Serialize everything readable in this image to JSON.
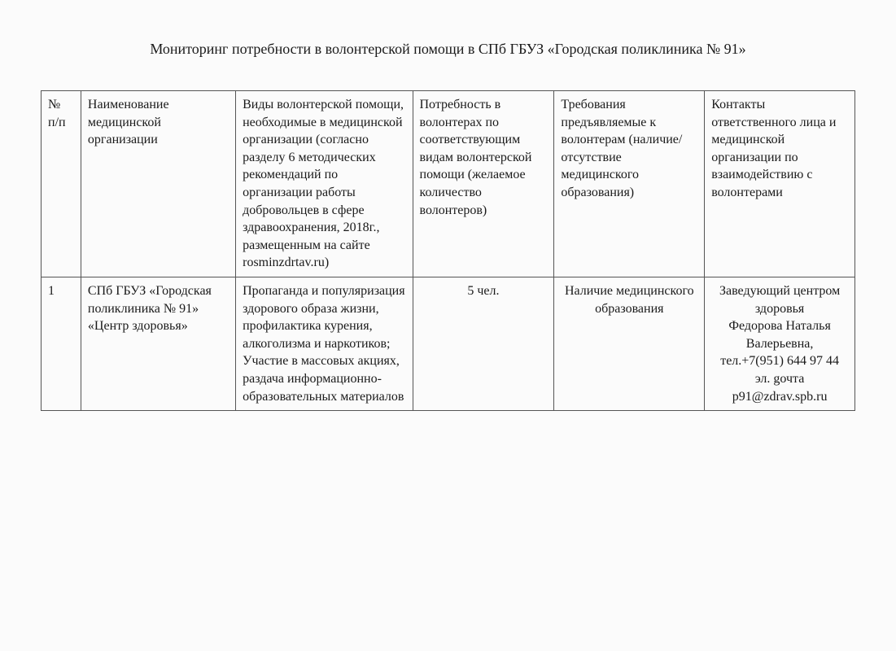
{
  "title": "Мониторинг потребности в волонтерской помощи в СПб ГБУЗ «Городская поликлиника № 91»",
  "table": {
    "header": {
      "num": "№ п/п",
      "name": "Наименование медицинской организации",
      "types": "Виды волонтерской помощи, необходимые в медицинской организации (согласно разделу 6 методических рекомендаций по организации работы добровольцев в сфере здравоохранения, 2018г., размещенным на сайте rosminzdrtav.ru)",
      "need": "Потребность в волонтерах по соответствующим видам волонтерской помощи (желаемое количество волонтеров)",
      "req": "Требования предъявляемые к волонтерам (наличие/отсутствие медицинского образования)",
      "contacts": "Контакты ответственного лица и медицинской организации по взаимодействию с волонтерами"
    },
    "row1": {
      "num": "1",
      "name": "СПб ГБУЗ «Городская поликлиника № 91» «Центр здоровья»",
      "types": "Пропаганда и популяризация здорового образа жизни, профилактика курения, алкоголизма и наркотиков;\nУчастие в массовых акциях, раздача информационно-образовательных материалов",
      "need": "5 чел.",
      "req": "Наличие медицинского образования",
      "contacts": "Заведующий центром здоровья\nФедорова Наталья Валерьевна,\nтел.+7(951) 644 97 44\nэл. gочта\np91@zdrav.spb.ru"
    }
  }
}
